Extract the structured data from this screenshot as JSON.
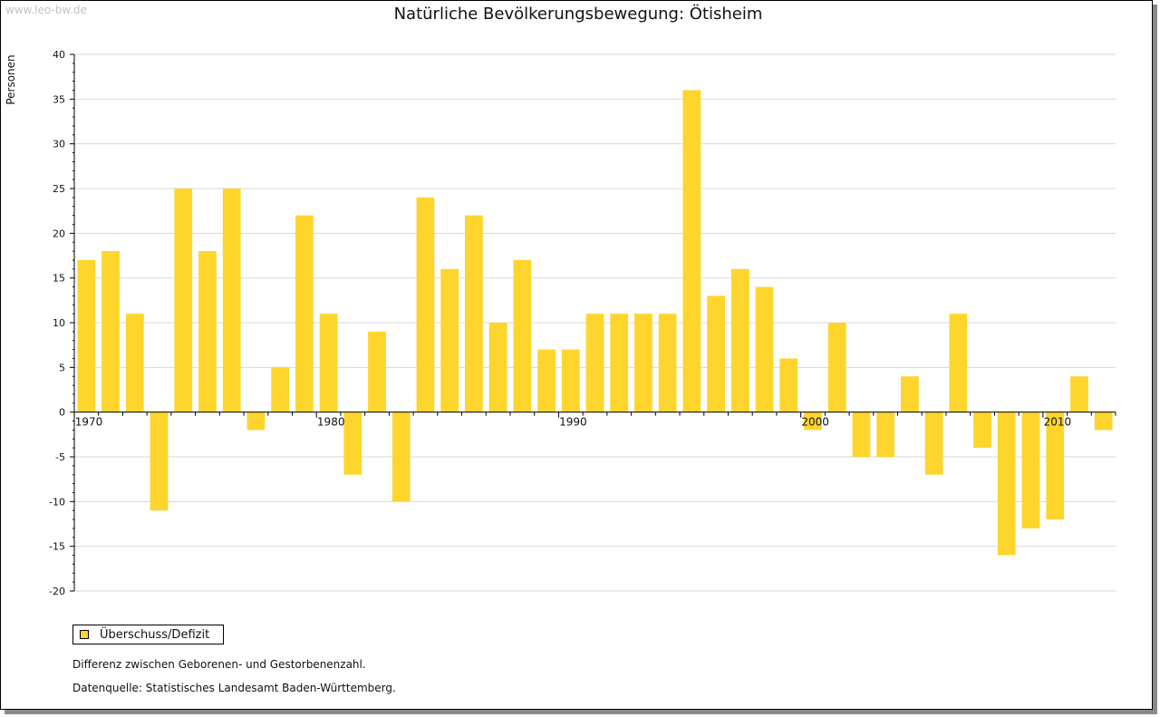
{
  "watermark": "www.leo-bw.de",
  "bar_color": "#fdd52d",
  "chart_data": {
    "type": "bar",
    "title": "Natürliche Bevölkerungsbewegung: Ötisheim",
    "ylabel": "Personen",
    "xlabel": "",
    "ylim": [
      -20,
      40
    ],
    "yticks": [
      40,
      35,
      30,
      25,
      20,
      15,
      10,
      5,
      0,
      -5,
      -10,
      -15,
      -20
    ],
    "x_tick_labels": [
      1970,
      1980,
      1990,
      2000,
      2010
    ],
    "grid": true,
    "categories": [
      1970,
      1971,
      1972,
      1973,
      1974,
      1975,
      1976,
      1977,
      1978,
      1979,
      1980,
      1981,
      1982,
      1983,
      1984,
      1985,
      1986,
      1987,
      1988,
      1989,
      1990,
      1991,
      1992,
      1993,
      1994,
      1995,
      1996,
      1997,
      1998,
      1999,
      2000,
      2001,
      2002,
      2003,
      2004,
      2005,
      2006,
      2007,
      2008,
      2009,
      2010,
      2011,
      2012
    ],
    "series": [
      {
        "name": "Überschuss/Defizit",
        "values": [
          17,
          18,
          11,
          -11,
          25,
          18,
          25,
          -2,
          5,
          22,
          11,
          -7,
          9,
          -10,
          24,
          16,
          22,
          10,
          17,
          7,
          7,
          11,
          11,
          11,
          11,
          36,
          13,
          16,
          14,
          6,
          -2,
          10,
          -5,
          -5,
          4,
          -7,
          11,
          -4,
          -16,
          -13,
          -12,
          4,
          -2
        ]
      }
    ]
  },
  "legend": {
    "label": "Überschuss/Defizit"
  },
  "notes": {
    "line1": "Differenz zwischen Geborenen- und Gestorbenenzahl.",
    "line2": "Datenquelle: Statistisches Landesamt Baden-Württemberg."
  }
}
